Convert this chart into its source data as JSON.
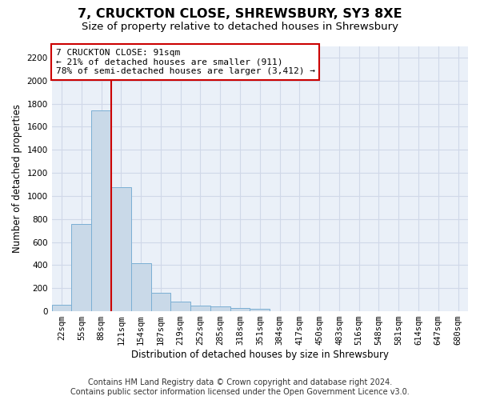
{
  "title": "7, CRUCKTON CLOSE, SHREWSBURY, SY3 8XE",
  "subtitle": "Size of property relative to detached houses in Shrewsbury",
  "xlabel": "Distribution of detached houses by size in Shrewsbury",
  "ylabel": "Number of detached properties",
  "footer_line1": "Contains HM Land Registry data © Crown copyright and database right 2024.",
  "footer_line2": "Contains public sector information licensed under the Open Government Licence v3.0.",
  "bin_labels": [
    "22sqm",
    "55sqm",
    "88sqm",
    "121sqm",
    "154sqm",
    "187sqm",
    "219sqm",
    "252sqm",
    "285sqm",
    "318sqm",
    "351sqm",
    "384sqm",
    "417sqm",
    "450sqm",
    "483sqm",
    "516sqm",
    "548sqm",
    "581sqm",
    "614sqm",
    "647sqm",
    "680sqm"
  ],
  "bar_values": [
    55,
    760,
    1740,
    1075,
    420,
    158,
    82,
    48,
    42,
    30,
    20,
    0,
    0,
    0,
    0,
    0,
    0,
    0,
    0,
    0,
    0
  ],
  "bar_color": "#c9d9e8",
  "bar_edgecolor": "#7bafd4",
  "bar_width": 1.0,
  "ylim": [
    0,
    2300
  ],
  "yticks": [
    0,
    200,
    400,
    600,
    800,
    1000,
    1200,
    1400,
    1600,
    1800,
    2000,
    2200
  ],
  "property_bin_index": 2,
  "red_line_color": "#cc0000",
  "annotation_text": "7 CRUCKTON CLOSE: 91sqm\n← 21% of detached houses are smaller (911)\n78% of semi-detached houses are larger (3,412) →",
  "annotation_box_color": "#ffffff",
  "annotation_box_edgecolor": "#cc0000",
  "grid_color": "#d0d8e8",
  "background_color": "#eaf0f8",
  "title_fontsize": 11.5,
  "subtitle_fontsize": 9.5,
  "axis_label_fontsize": 8.5,
  "tick_fontsize": 7.5,
  "annotation_fontsize": 8,
  "footer_fontsize": 7
}
